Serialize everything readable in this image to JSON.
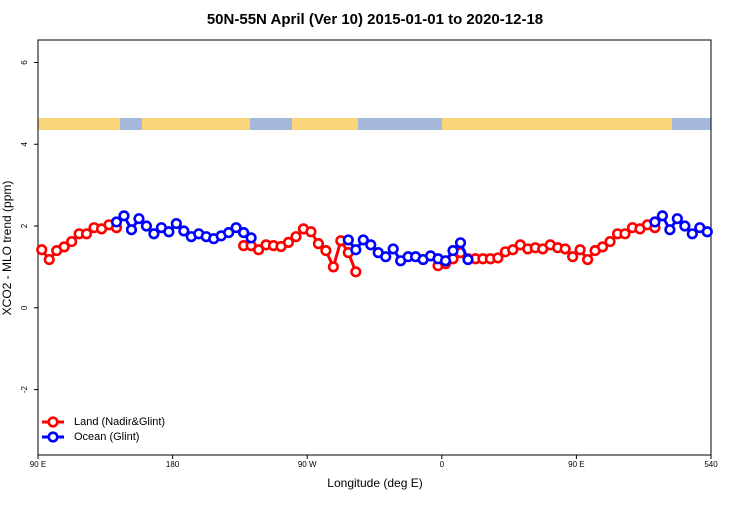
{
  "chart_data": {
    "type": "line",
    "title": "50N-55N April (Ver 10)   2015-01-01 to 2020-12-18",
    "xlabel": "Longitude (deg E)",
    "ylabel": "XCO2 - MLO trend (ppm)",
    "xlim": [
      90,
      540
    ],
    "ylim": [
      -3.6,
      6.55
    ],
    "xticks": [
      {
        "value": 90,
        "label": "90 E"
      },
      180,
      {
        "value": 270,
        "label": "90 W"
      },
      {
        "value": 360,
        "label": "0"
      },
      {
        "value": 450,
        "label": "90 E"
      },
      540
    ],
    "yticks": [
      -2,
      0,
      2,
      4,
      6
    ],
    "legend": "bottom-left",
    "series": [
      {
        "name": "Land (Nadir&Glint)",
        "color": "#ff0000",
        "x": [
          92.5,
          97.5,
          102.5,
          107.5,
          112.5,
          117.5,
          122.5,
          127.5,
          132.5,
          137.5,
          142.5,
          null,
          227.5,
          232.5,
          237.5,
          242.5,
          247.5,
          252.5,
          257.5,
          262.5,
          267.5,
          272.5,
          277.5,
          282.5,
          287.5,
          292.5,
          297.5,
          302.5,
          null,
          357.5,
          362.5,
          367.5,
          372.5,
          377.5,
          382.5,
          387.5,
          392.5,
          397.5,
          402.5,
          407.5,
          412.5,
          417.5,
          422.5,
          427.5,
          432.5,
          437.5,
          442.5,
          447.5,
          452.5,
          457.5,
          462.5,
          467.5,
          472.5,
          477.5,
          482.5,
          487.5,
          492.5,
          497.5,
          502.5
        ],
        "values": [
          1.42,
          1.18,
          1.4,
          1.49,
          1.62,
          1.81,
          1.81,
          1.96,
          1.93,
          2.03,
          1.96,
          null,
          1.52,
          1.52,
          1.42,
          1.54,
          1.52,
          1.5,
          1.6,
          1.74,
          1.93,
          1.86,
          1.57,
          1.4,
          1.0,
          1.64,
          1.35,
          0.88,
          null,
          1.03,
          1.08,
          1.2,
          1.35,
          1.2,
          1.2,
          1.2,
          1.2,
          1.22,
          1.37,
          1.42,
          1.54,
          1.44,
          1.47,
          1.44,
          1.54,
          1.47,
          1.44,
          1.25,
          1.42,
          1.18,
          1.4,
          1.49,
          1.62,
          1.81,
          1.81,
          1.96,
          1.93,
          2.03,
          1.96
        ]
      },
      {
        "name": "Ocean (Glint)",
        "color": "#0000ff",
        "x": [
          142.5,
          147.5,
          152.5,
          157.5,
          162.5,
          167.5,
          172.5,
          177.5,
          182.5,
          187.5,
          192.5,
          197.5,
          202.5,
          207.5,
          212.5,
          217.5,
          222.5,
          227.5,
          232.5,
          null,
          297.5,
          302.5,
          307.5,
          312.5,
          317.5,
          322.5,
          327.5,
          332.5,
          337.5,
          342.5,
          347.5,
          352.5,
          357.5,
          362.5,
          367.5,
          372.5,
          377.5,
          null,
          502.5,
          507.5,
          512.5,
          517.5,
          522.5,
          527.5,
          532.5,
          537.5
        ],
        "values": [
          2.1,
          2.25,
          1.91,
          2.18,
          2.0,
          1.81,
          1.96,
          1.86,
          2.06,
          1.88,
          1.74,
          1.81,
          1.74,
          1.69,
          1.76,
          1.84,
          1.96,
          1.84,
          1.71,
          null,
          1.66,
          1.42,
          1.66,
          1.54,
          1.35,
          1.25,
          1.44,
          1.15,
          1.25,
          1.25,
          1.18,
          1.27,
          1.2,
          1.15,
          1.4,
          1.59,
          1.18,
          null,
          2.1,
          2.25,
          1.91,
          2.18,
          2.0,
          1.81,
          1.96,
          1.86
        ]
      }
    ]
  }
}
